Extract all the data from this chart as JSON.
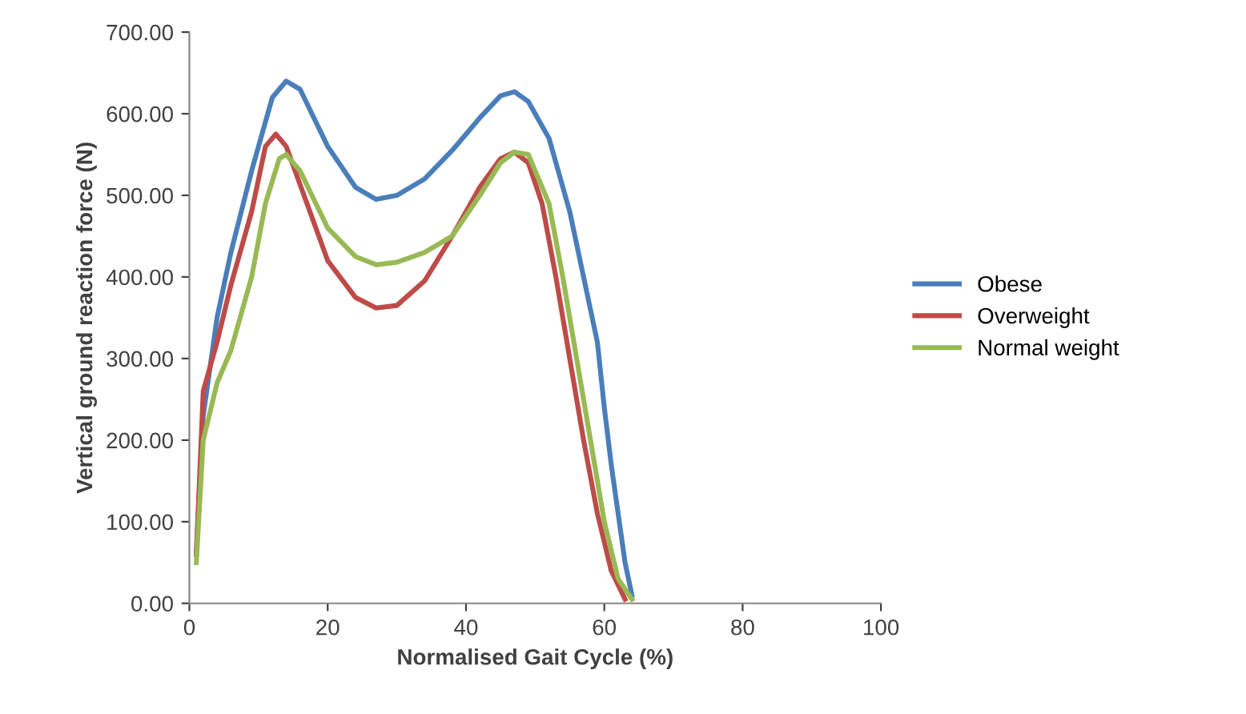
{
  "chart_data": {
    "type": "line",
    "xlabel": "Normalised Gait Cycle (%)",
    "ylabel": "Vertical ground reaction force (N)",
    "xlim": [
      0,
      100
    ],
    "xticks": [
      0,
      20,
      40,
      60,
      80,
      100
    ],
    "ylim": [
      0,
      700
    ],
    "yticks": [
      {
        "value": 0,
        "label": "0.00"
      },
      {
        "value": 100,
        "label": "100.00"
      },
      {
        "value": 200,
        "label": "200.00"
      },
      {
        "value": 300,
        "label": "300.00"
      },
      {
        "value": 400,
        "label": "400.00"
      },
      {
        "value": 500,
        "label": "500.00"
      },
      {
        "value": 600,
        "label": "600.00"
      },
      {
        "value": 700,
        "label": "700.00"
      }
    ],
    "grid": false,
    "legend": "right",
    "marker": "none",
    "line_style": "solid",
    "series": [
      {
        "name": "Obese",
        "color": "#4a7ebb",
        "x": [
          1,
          2,
          4,
          6,
          9,
          12,
          14,
          16,
          20,
          24,
          27,
          30,
          34,
          38,
          42,
          45,
          47,
          49,
          52,
          55,
          57,
          59,
          60,
          61,
          62,
          63,
          64
        ],
        "values": [
          60,
          230,
          350,
          430,
          530,
          620,
          640,
          630,
          560,
          510,
          495,
          500,
          520,
          555,
          595,
          622,
          627,
          615,
          570,
          480,
          400,
          320,
          240,
          170,
          110,
          50,
          10
        ]
      },
      {
        "name": "Overweight",
        "color": "#be4b48",
        "x": [
          1,
          2,
          4,
          6,
          9,
          11,
          12.5,
          14,
          17,
          20,
          24,
          27,
          30,
          34,
          38,
          42,
          45,
          47,
          49,
          51,
          53,
          55,
          57,
          59,
          61,
          63
        ],
        "values": [
          60,
          260,
          320,
          390,
          480,
          560,
          575,
          560,
          490,
          420,
          375,
          362,
          365,
          395,
          450,
          510,
          545,
          553,
          540,
          490,
          400,
          300,
          200,
          110,
          40,
          5
        ]
      },
      {
        "name": "Normal weight",
        "color": "#98b954",
        "x": [
          1,
          2,
          4,
          6,
          9,
          11,
          13,
          14,
          16,
          20,
          24,
          27,
          30,
          34,
          38,
          42,
          45,
          47,
          49,
          52,
          54,
          56,
          58,
          60,
          62,
          64
        ],
        "values": [
          50,
          200,
          270,
          310,
          400,
          490,
          545,
          550,
          530,
          460,
          425,
          415,
          418,
          430,
          450,
          500,
          540,
          553,
          550,
          490,
          400,
          300,
          200,
          100,
          30,
          5
        ]
      }
    ]
  }
}
